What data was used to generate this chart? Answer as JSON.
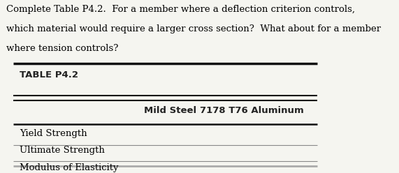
{
  "question_text_line1": "Complete Table P4.2.  For a member where a deflection criterion controls,",
  "question_text_line2": "which material would require a larger cross section?  What about for a member",
  "question_text_line3": "where tension controls?",
  "table_title": "TABLE P4.2",
  "col_headers": [
    "Mild Steel",
    "7178 T76 Aluminum"
  ],
  "row_labels": [
    "Yield Strength",
    "Ultimate Strength",
    "Modulus of Elasticity"
  ],
  "bg_color": "#f5f5f0",
  "text_color": "#000000",
  "header_color": "#222222",
  "question_font_size": 9.5,
  "table_title_font_size": 9.5,
  "col_header_font_size": 9.5,
  "row_label_font_size": 9.5
}
